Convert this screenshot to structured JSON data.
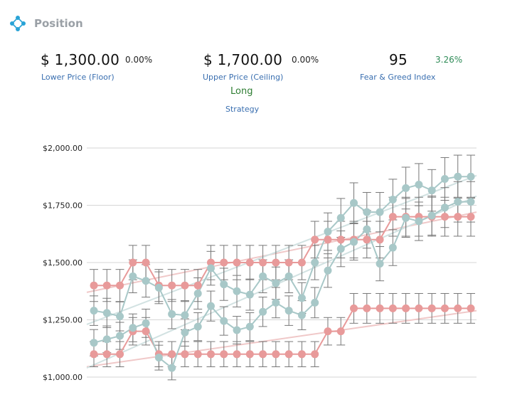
{
  "header": {
    "title": "Position",
    "icon": "network-icon",
    "icon_color": "#29a3d6"
  },
  "metrics": {
    "lower": {
      "value": "$ 1,300.00",
      "change": "0.00%",
      "label": "Lower Price (Floor)"
    },
    "upper": {
      "value": "$ 1,700.00",
      "change": "0.00%",
      "label": "Upper Price (Ceiling)"
    },
    "fng": {
      "value": "95",
      "change": "3.26%",
      "label": "Fear & Greed Index"
    }
  },
  "strategy": {
    "value": "Long",
    "label": "Strategy"
  },
  "colors": {
    "red": "#e89a9a",
    "teal": "#a8c8c8",
    "trend_red": "#f0c8c8",
    "trend_teal": "#d2e2e2",
    "error": "#777777"
  },
  "chart_data": {
    "type": "line",
    "title": "",
    "xlabel": "",
    "ylabel": "",
    "ylim": [
      1000,
      2000
    ],
    "yticks": [
      1000,
      1250,
      1500,
      1750,
      2000
    ],
    "ytick_labels": [
      "$1,000.00",
      "$1,250.00",
      "$1,500.00",
      "$1,750.00",
      "$2,000.00"
    ],
    "grid": true,
    "error_bar_fraction": 0.05,
    "series": [
      {
        "color": "#e89a9a",
        "values": [
          1400,
          1400,
          1400,
          1500,
          1500,
          1400,
          1400,
          1400,
          1400,
          1500,
          1500,
          1500,
          1500,
          1500,
          1500,
          1500,
          1500,
          1600,
          1600,
          1600,
          1600,
          1600,
          1600,
          1700,
          1700,
          1700,
          1700,
          1700,
          1700,
          1700
        ]
      },
      {
        "color": "#e89a9a",
        "values": [
          1100,
          1100,
          1100,
          1200,
          1200,
          1100,
          1100,
          1100,
          1100,
          1100,
          1100,
          1100,
          1100,
          1100,
          1100,
          1100,
          1100,
          1100,
          1200,
          1200,
          1300,
          1300,
          1300,
          1300,
          1300,
          1300,
          1300,
          1300,
          1300,
          1300
        ]
      },
      {
        "color": "#a8c8c8",
        "values": [
          1290,
          1280,
          1265,
          1440,
          1420,
          1390,
          1275,
          1270,
          1365,
          1475,
          1405,
          1375,
          1360,
          1440,
          1410,
          1440,
          1345,
          1500,
          1635,
          1695,
          1760,
          1720,
          1720,
          1775,
          1825,
          1840,
          1815,
          1865,
          1875,
          1875
        ]
      },
      {
        "color": "#a8c8c8",
        "values": [
          1150,
          1165,
          1180,
          1215,
          1235,
          1085,
          1040,
          1195,
          1220,
          1310,
          1245,
          1205,
          1220,
          1285,
          1325,
          1290,
          1270,
          1325,
          1465,
          1560,
          1590,
          1645,
          1495,
          1565,
          1695,
          1680,
          1705,
          1740,
          1765,
          1765
        ]
      }
    ],
    "trendlines": [
      {
        "color": "#f0c8c8",
        "from": 1370,
        "to": 1720
      },
      {
        "color": "#f0c8c8",
        "from": 1045,
        "to": 1290
      },
      {
        "color": "#d2e2e2",
        "from": 1230,
        "to": 1880
      },
      {
        "color": "#d2e2e2",
        "from": 1040,
        "to": 1790
      }
    ]
  }
}
